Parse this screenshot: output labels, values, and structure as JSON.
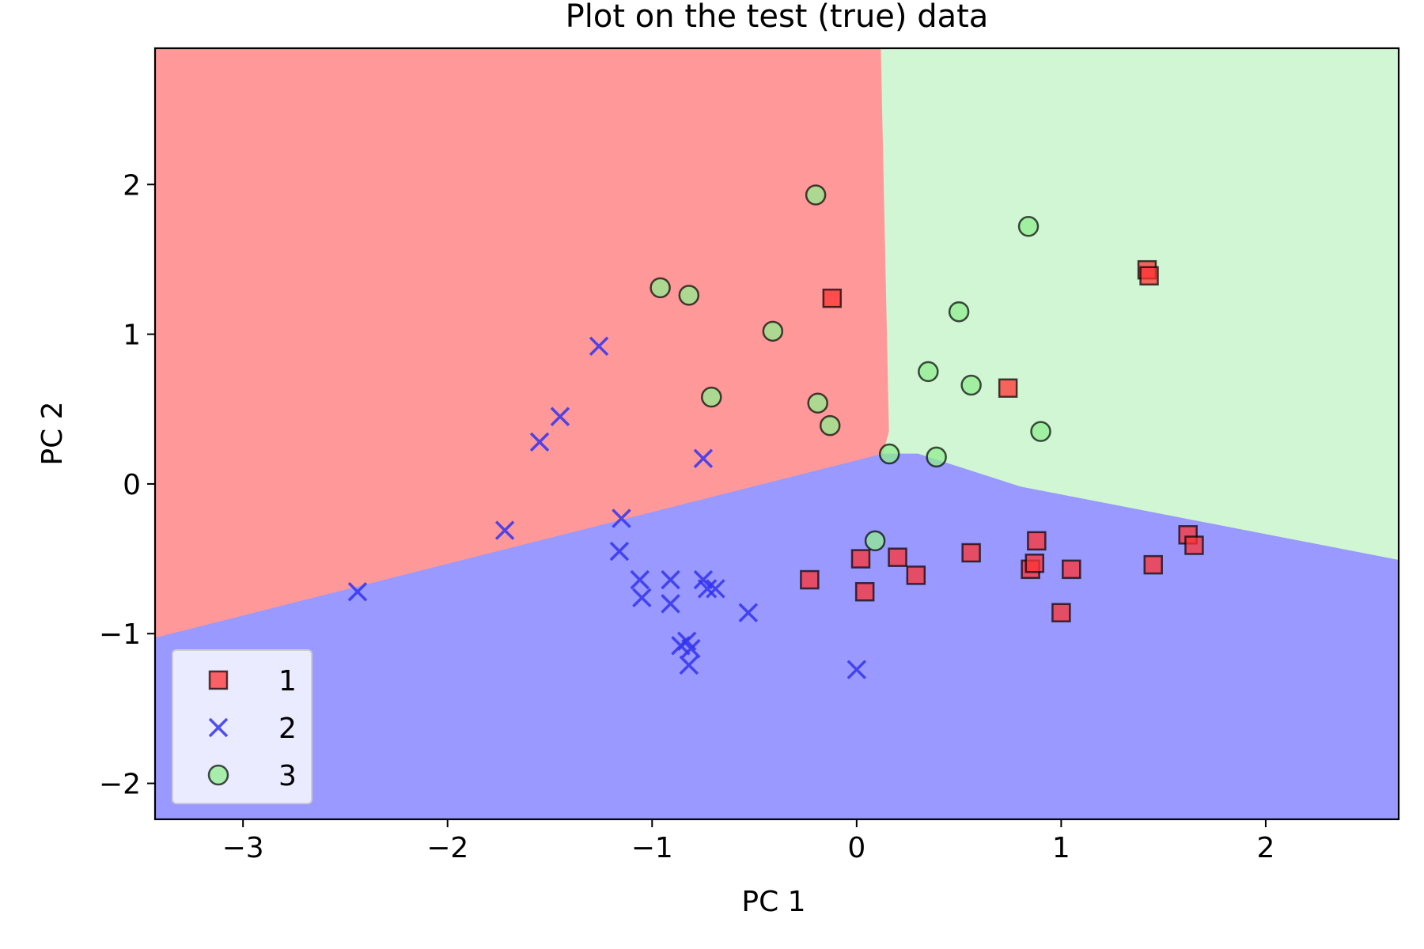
{
  "chart_data": {
    "type": "scatter",
    "title": "Plot on the test (true) data",
    "xlabel": "PC 1",
    "ylabel": "PC 2",
    "xlim": [
      -3.43,
      2.65
    ],
    "ylim": [
      -2.24,
      2.91
    ],
    "xticks": [
      -3,
      -2,
      -1,
      0,
      1,
      2
    ],
    "yticks": [
      -2,
      -1,
      0,
      1,
      2
    ],
    "xtick_labels": [
      "−3",
      "−2",
      "−1",
      "0",
      "1",
      "2"
    ],
    "ytick_labels": [
      "−2",
      "−1",
      "0",
      "1",
      "2"
    ],
    "grid": false,
    "legend_position": "lower-left",
    "decision_regions": [
      {
        "class": "1",
        "color": "#ff9999",
        "boundary": [
          [
            -3.43,
            -1.03
          ],
          [
            0.13,
            0.2
          ],
          [
            0.16,
            0.35
          ],
          [
            0.12,
            2.91
          ],
          [
            -3.43,
            2.91
          ]
        ]
      },
      {
        "class": "3",
        "color": "#d1f6d3",
        "boundary": [
          [
            0.13,
            0.2
          ],
          [
            0.16,
            0.35
          ],
          [
            0.12,
            2.91
          ],
          [
            2.65,
            2.91
          ],
          [
            2.65,
            -0.51
          ],
          [
            0.8,
            -0.02
          ],
          [
            0.3,
            0.2
          ]
        ]
      },
      {
        "class": "2",
        "color": "#9999ff",
        "boundary": [
          [
            -3.43,
            -1.03
          ],
          [
            0.13,
            0.2
          ],
          [
            0.3,
            0.2
          ],
          [
            0.8,
            -0.02
          ],
          [
            2.65,
            -0.51
          ],
          [
            2.65,
            -2.24
          ],
          [
            -3.43,
            -2.24
          ]
        ]
      }
    ],
    "series": [
      {
        "name": "1",
        "marker": "square",
        "color": "#ff3333",
        "points": [
          [
            -0.12,
            1.24
          ],
          [
            0.74,
            0.64
          ],
          [
            1.42,
            1.43
          ],
          [
            1.43,
            1.39
          ],
          [
            -0.23,
            -0.64
          ],
          [
            0.02,
            -0.5
          ],
          [
            0.04,
            -0.72
          ],
          [
            0.2,
            -0.49
          ],
          [
            0.29,
            -0.61
          ],
          [
            0.56,
            -0.46
          ],
          [
            0.85,
            -0.57
          ],
          [
            0.87,
            -0.53
          ],
          [
            0.88,
            -0.38
          ],
          [
            1.05,
            -0.57
          ],
          [
            1.0,
            -0.86
          ],
          [
            1.45,
            -0.54
          ],
          [
            1.62,
            -0.34
          ],
          [
            1.65,
            -0.41
          ]
        ]
      },
      {
        "name": "2",
        "marker": "x",
        "color": "#3333ee",
        "points": [
          [
            -1.26,
            0.92
          ],
          [
            -1.45,
            0.45
          ],
          [
            -1.55,
            0.28
          ],
          [
            -0.75,
            0.17
          ],
          [
            -1.72,
            -0.31
          ],
          [
            -2.44,
            -0.72
          ],
          [
            -1.15,
            -0.23
          ],
          [
            -1.16,
            -0.45
          ],
          [
            -1.06,
            -0.64
          ],
          [
            -1.05,
            -0.76
          ],
          [
            -0.91,
            -0.64
          ],
          [
            -0.91,
            -0.8
          ],
          [
            -0.75,
            -0.64
          ],
          [
            -0.73,
            -0.7
          ],
          [
            -0.69,
            -0.7
          ],
          [
            -0.53,
            -0.86
          ],
          [
            -0.86,
            -1.08
          ],
          [
            -0.83,
            -1.05
          ],
          [
            -0.81,
            -1.1
          ],
          [
            -0.82,
            -1.21
          ],
          [
            0.0,
            -1.24
          ]
        ]
      },
      {
        "name": "3",
        "marker": "circle",
        "color": "#90ee90",
        "points": [
          [
            -0.2,
            1.93
          ],
          [
            -0.96,
            1.31
          ],
          [
            -0.82,
            1.26
          ],
          [
            -0.41,
            1.02
          ],
          [
            -0.71,
            0.58
          ],
          [
            -0.19,
            0.54
          ],
          [
            -0.13,
            0.39
          ],
          [
            0.84,
            1.72
          ],
          [
            0.5,
            1.15
          ],
          [
            0.35,
            0.75
          ],
          [
            0.56,
            0.66
          ],
          [
            0.9,
            0.35
          ],
          [
            0.16,
            0.2
          ],
          [
            0.39,
            0.18
          ],
          [
            0.09,
            -0.38
          ]
        ]
      }
    ],
    "legend": [
      {
        "label": "1",
        "marker": "square"
      },
      {
        "label": "2",
        "marker": "x"
      },
      {
        "label": "3",
        "marker": "circle"
      }
    ]
  }
}
